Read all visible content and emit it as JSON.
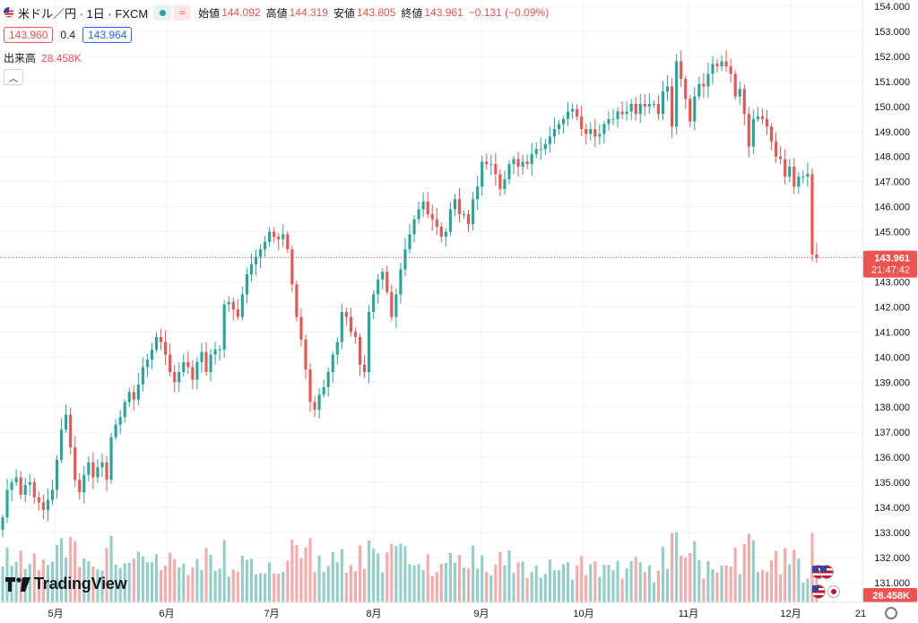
{
  "header": {
    "symbol": "米ドル／円 · 1日 · FXCM",
    "approx_icon": "≈",
    "open_label": "始値",
    "open": "144.092",
    "high_label": "高値",
    "high": "144.319",
    "low_label": "安値",
    "low": "143.805",
    "close_label": "終値",
    "close": "143.961",
    "change": "−0.131 (−0.09%)",
    "sell_price": "143.960",
    "spread": "0.4",
    "buy_price": "143.964",
    "volume_label": "出来高",
    "volume": "28.458K",
    "collapse_icon": "chevron-up-icon"
  },
  "branding": {
    "logo_text": "TradingView"
  },
  "colors": {
    "up": "#26a69a",
    "down": "#ef5350",
    "vol_up": "#93cfc8",
    "vol_down": "#f7aaa9",
    "grid": "#f0f3fa",
    "axis_text": "#131722"
  },
  "price_marker": {
    "price": "143.961",
    "countdown": "21:47:42"
  },
  "volume_marker": "28.458K",
  "chart_data": {
    "type": "candlestick",
    "title": "米ドル／円 · 1日 · FXCM",
    "price_axis": {
      "range": [
        130.8,
        154.2
      ],
      "ticks": [
        "154.000",
        "153.000",
        "152.000",
        "151.000",
        "150.000",
        "149.000",
        "148.000",
        "147.000",
        "146.000",
        "145.000",
        "144.000",
        "143.000",
        "142.000",
        "141.000",
        "140.000",
        "139.000",
        "138.000",
        "137.000",
        "136.000",
        "135.000",
        "134.000",
        "133.000",
        "132.000",
        "131.000"
      ]
    },
    "time_axis": {
      "ticks": [
        "5月",
        "6月",
        "7月",
        "8月",
        "9月",
        "10月",
        "11月",
        "12月",
        "21"
      ]
    },
    "grid": true,
    "series": [
      {
        "name": "米ドル／円",
        "closes": [
          133.6,
          134.7,
          135.0,
          135.2,
          134.5,
          134.9,
          135.0,
          134.4,
          134.2,
          133.9,
          134.3,
          134.7,
          135.9,
          137.1,
          137.7,
          136.4,
          135.1,
          134.6,
          135.3,
          135.8,
          135.2,
          135.6,
          135.8,
          135.1,
          136.8,
          137.3,
          137.6,
          138.2,
          138.6,
          138.3,
          138.9,
          139.6,
          139.9,
          140.3,
          140.8,
          140.6,
          140.1,
          139.4,
          139.0,
          139.4,
          139.8,
          139.6,
          139.1,
          139.8,
          140.2,
          139.4,
          140.1,
          140.3,
          140.3,
          142.1,
          142.2,
          141.9,
          141.6,
          142.5,
          143.3,
          143.7,
          144.0,
          144.3,
          144.6,
          145.0,
          144.8,
          144.7,
          144.9,
          144.3,
          142.9,
          141.6,
          140.7,
          139.5,
          138.2,
          137.9,
          138.5,
          138.8,
          139.4,
          140.1,
          140.6,
          141.8,
          141.6,
          141.0,
          140.8,
          139.7,
          139.4,
          141.8,
          142.5,
          143.1,
          143.4,
          142.6,
          141.6,
          142.5,
          143.5,
          144.3,
          144.9,
          145.5,
          145.9,
          146.2,
          145.7,
          145.5,
          145.2,
          144.8,
          145.0,
          145.9,
          146.3,
          145.7,
          145.7,
          145.3,
          146.3,
          146.8,
          147.8,
          147.7,
          147.7,
          147.3,
          146.7,
          147.1,
          147.7,
          147.9,
          147.6,
          147.8,
          147.7,
          148.1,
          148.3,
          148.3,
          148.5,
          148.8,
          149.1,
          149.3,
          149.5,
          149.8,
          149.9,
          149.6,
          149.1,
          148.9,
          149.1,
          148.8,
          148.9,
          149.3,
          149.5,
          149.5,
          149.8,
          149.7,
          149.8,
          150.1,
          149.7,
          150.1,
          150.0,
          150.1,
          150.1,
          149.7,
          150.6,
          150.8,
          149.2,
          151.8,
          151.1,
          150.3,
          149.4,
          150.4,
          150.9,
          150.8,
          151.3,
          151.7,
          151.6,
          151.8,
          151.6,
          151.3,
          150.4,
          150.7,
          149.7,
          148.4,
          149.5,
          149.6,
          149.5,
          149.2,
          148.6,
          148.0,
          147.9,
          147.2,
          147.6,
          146.8,
          147.2,
          147.2,
          147.3,
          144.1,
          143.961
        ]
      }
    ],
    "volume": {
      "last": "28.458K"
    }
  }
}
